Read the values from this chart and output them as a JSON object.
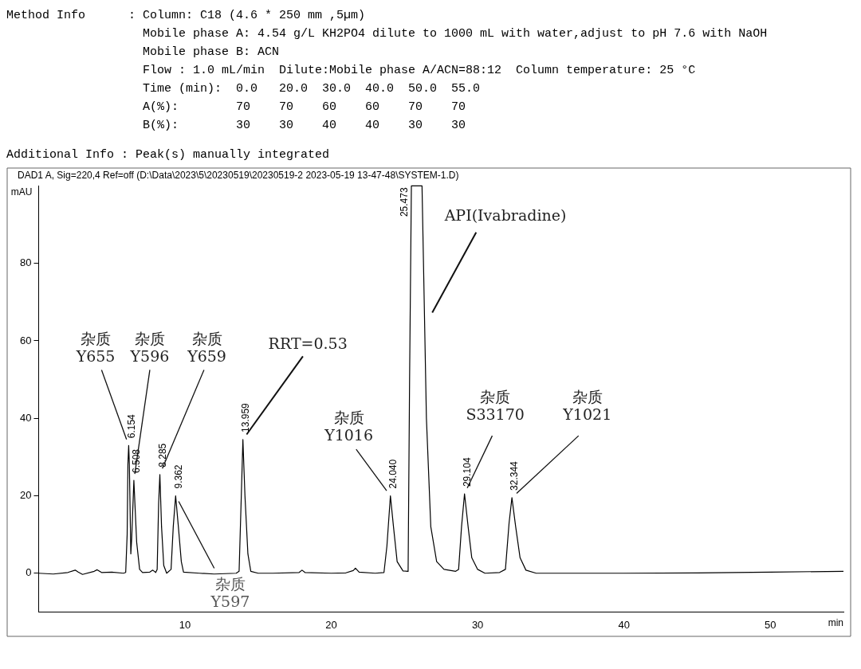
{
  "chart_data": {
    "type": "line",
    "title": "DAD1 A, Sig=220,4 Ref=off (D:\\Data\\2023\\5\\20230519\\20230519-2 2023-05-19 13-47-48\\SYSTEM-1.D)",
    "xlabel": "min",
    "ylabel": "mAU",
    "x": [
      0,
      1,
      2,
      2.5,
      2.7,
      3,
      3.8,
      4,
      4.3,
      5,
      5.8,
      5.95,
      6.05,
      6.1,
      6.154,
      6.2,
      6.3,
      6.36,
      6.508,
      6.7,
      6.9,
      7.1,
      7.6,
      7.8,
      8,
      8.1,
      8.2,
      8.285,
      8.4,
      8.55,
      8.75,
      9.05,
      9.2,
      9.362,
      9.55,
      9.75,
      9.9,
      11,
      12,
      13.5,
      13.7,
      13.85,
      13.959,
      14.1,
      14.3,
      14.5,
      15,
      16,
      17.8,
      18,
      18.2,
      20,
      21,
      21.5,
      21.65,
      21.9,
      23,
      23.6,
      23.8,
      24.04,
      24.25,
      24.5,
      24.9,
      25.25,
      25.35,
      25.473,
      26.2,
      26.5,
      26.8,
      27.2,
      27.7,
      28.5,
      28.7,
      28.9,
      29.104,
      29.35,
      29.6,
      30,
      30.5,
      31.5,
      31.9,
      32.15,
      32.344,
      32.6,
      32.9,
      33.3,
      34,
      40,
      45,
      50,
      55
    ],
    "series": [
      {
        "color": "#000000",
        "values": [
          0,
          -0.2,
          0.2,
          0.8,
          0.3,
          -0.3,
          0.5,
          0.9,
          0.2,
          0.3,
          0,
          0.2,
          10,
          28,
          33,
          28,
          5,
          9,
          24,
          8,
          1,
          0.2,
          0.3,
          0.8,
          0.2,
          1,
          18,
          25.5,
          12,
          2,
          0,
          1,
          12,
          20,
          12,
          3,
          0.3,
          0,
          -0.2,
          0,
          0.5,
          20,
          34.5,
          20,
          5,
          0.5,
          0,
          0,
          0.2,
          0.8,
          0.2,
          0,
          0.1,
          0.7,
          1.3,
          0.3,
          0,
          0.2,
          7,
          20,
          12,
          3,
          0.6,
          0.5,
          50,
          100,
          100,
          40,
          12,
          3,
          1,
          0.5,
          1,
          12,
          20.5,
          12,
          4,
          1,
          0,
          0.2,
          1,
          13,
          19.5,
          12,
          4,
          0.8,
          0,
          0,
          0.1,
          0.3,
          0.5
        ]
      }
    ],
    "xlim": [
      0,
      55
    ],
    "ylim": [
      -10,
      100
    ],
    "xticks": [
      10,
      20,
      30,
      40,
      50
    ],
    "yticks": [
      0,
      20,
      40,
      60,
      80
    ],
    "grid": false,
    "legend": false,
    "marker": "none",
    "line_style": "solid",
    "annotations": [
      "Method Info      : Column: C18 (4.6 * 250 mm ,5µm)",
      "                   Mobile phase A: 4.54 g/L KH2PO4 dilute to 1000 mL with water,adjust to pH 7.6 with NaOH",
      "                   Mobile phase B: ACN",
      "                   Flow : 1.0 mL/min  Dilute:Mobile phase A/ACN=88:12  Column temperature: 25 °C",
      "                   Time (min):  0.0   20.0  30.0  40.0  50.0  55.0",
      "                   A(%):        70    70    60    60    70    70",
      "                   B(%):        30    30    40    40    30    30",
      "Additional Info : Peak(s) manually integrated",
      {
        "text": "6.154",
        "x": 6.154,
        "y": 33
      },
      {
        "text": "6.508",
        "x": 6.508,
        "y": 24
      },
      {
        "text": "8.285",
        "x": 8.285,
        "y": 25.5
      },
      {
        "text": "9.362",
        "x": 9.362,
        "y": 20
      },
      {
        "text": "13.959",
        "x": 13.959,
        "y": 34.5
      },
      {
        "text": "24.040",
        "x": 24.04,
        "y": 20
      },
      {
        "text": "25.473",
        "x": 25.473,
        "y": 100
      },
      {
        "text": "29.104",
        "x": 29.104,
        "y": 20.5
      },
      {
        "text": "32.344",
        "x": 32.344,
        "y": 19.5
      },
      {
        "text": "杂质\nY655",
        "x": 6.154,
        "y": 33
      },
      {
        "text": "杂质\nY596",
        "x": 6.508,
        "y": 24
      },
      {
        "text": "杂质\nY659",
        "x": 8.285,
        "y": 25.5
      },
      {
        "text": "杂质\nY597",
        "x": 9.362,
        "y": 20
      },
      {
        "text": "RRT=0.53",
        "x": 13.959,
        "y": 34.5
      },
      {
        "text": "API(Ivabradine)",
        "x": 25.473,
        "y": 100
      },
      {
        "text": "杂质\nY1016",
        "x": 24.04,
        "y": 20
      },
      {
        "text": "杂质\nS33170",
        "x": 29.104,
        "y": 20.5
      },
      {
        "text": "杂质\nY1021",
        "x": 32.344,
        "y": 19.5
      }
    ]
  }
}
